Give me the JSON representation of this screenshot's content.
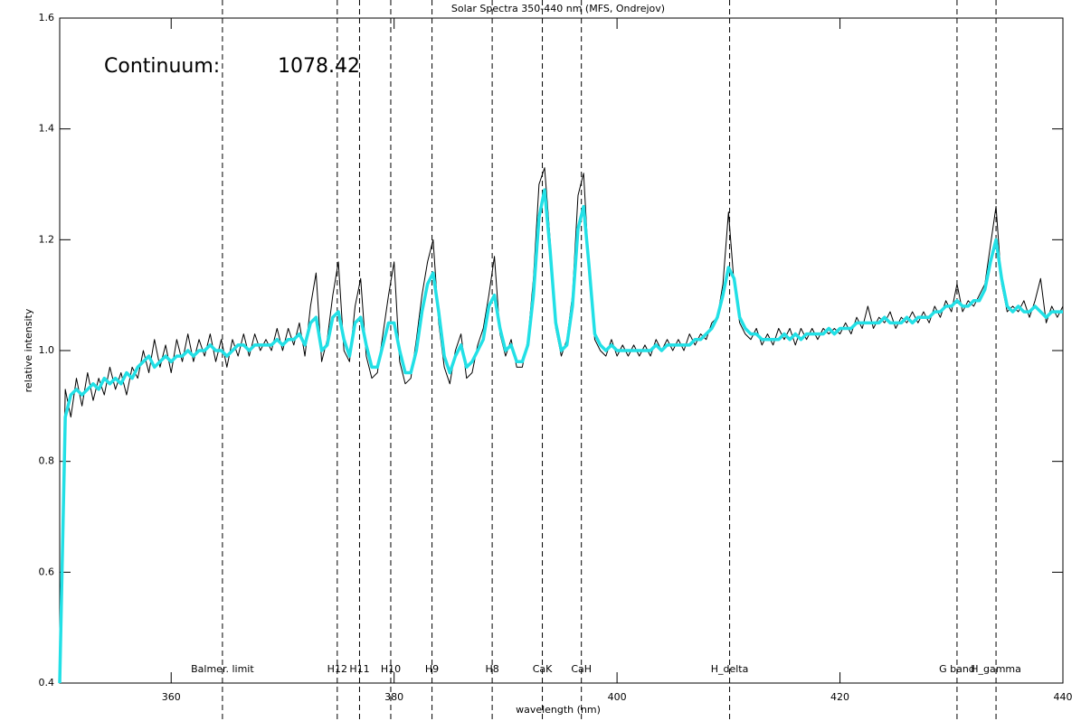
{
  "chart_data": {
    "type": "line",
    "title": "Solar Spectra 350-440 nm (MFS, Ondrejov)",
    "x_label": "wavelength (nm)",
    "y_label": "relative intensity",
    "continuum_label": "Continuum:",
    "continuum_value": "1078.42",
    "xlim": [
      350,
      440
    ],
    "ylim": [
      0.4,
      1.6
    ],
    "xticks": [
      360,
      380,
      400,
      420,
      440
    ],
    "yticks": [
      0.4,
      0.6,
      0.8,
      {
        "value": 1,
        "label": "1.0"
      },
      1.2,
      1.4,
      1.6
    ],
    "x": [
      350,
      350.5,
      351,
      351.5,
      352,
      352.5,
      353,
      353.5,
      354,
      354.5,
      355,
      355.5,
      356,
      356.5,
      357,
      357.5,
      358,
      358.5,
      359,
      359.5,
      360,
      360.5,
      361,
      361.5,
      362,
      362.5,
      363,
      363.5,
      364,
      364.5,
      365,
      365.5,
      366,
      366.5,
      367,
      367.5,
      368,
      368.5,
      369,
      369.5,
      370,
      370.5,
      371,
      371.5,
      372,
      372.5,
      373,
      373.5,
      374,
      374.5,
      375,
      375.5,
      376,
      376.5,
      377,
      377.5,
      378,
      378.5,
      379,
      379.5,
      380,
      380.5,
      381,
      381.5,
      382,
      382.5,
      383,
      383.5,
      384,
      384.5,
      385,
      385.5,
      386,
      386.5,
      387,
      387.5,
      388,
      388.5,
      389,
      389.5,
      390,
      390.5,
      391,
      391.5,
      392,
      392.5,
      393,
      393.5,
      394,
      394.5,
      395,
      395.5,
      396,
      396.5,
      397,
      397.5,
      398,
      398.5,
      399,
      399.5,
      400,
      400.5,
      401,
      401.5,
      402,
      402.5,
      403,
      403.5,
      404,
      404.5,
      405,
      405.5,
      406,
      406.5,
      407,
      407.5,
      408,
      408.5,
      409,
      409.5,
      410,
      410.5,
      411,
      411.5,
      412,
      412.5,
      413,
      413.5,
      414,
      414.5,
      415,
      415.5,
      416,
      416.5,
      417,
      417.5,
      418,
      418.5,
      419,
      419.5,
      420,
      420.5,
      421,
      421.5,
      422,
      422.5,
      423,
      423.5,
      424,
      424.5,
      425,
      425.5,
      426,
      426.5,
      427,
      427.5,
      428,
      428.5,
      429,
      429.5,
      430,
      430.5,
      431,
      431.5,
      432,
      432.5,
      433,
      433.5,
      434,
      434.5,
      435,
      435.5,
      436,
      436.5,
      437,
      437.5,
      438,
      438.5,
      439,
      439.5,
      440
    ],
    "series": [
      {
        "color": "#000000",
        "width": 1,
        "values": [
          0.4,
          0.93,
          0.88,
          0.95,
          0.9,
          0.96,
          0.91,
          0.95,
          0.92,
          0.97,
          0.93,
          0.96,
          0.92,
          0.97,
          0.95,
          1.0,
          0.96,
          1.02,
          0.97,
          1.01,
          0.96,
          1.02,
          0.98,
          1.03,
          0.98,
          1.02,
          0.99,
          1.03,
          0.98,
          1.02,
          0.97,
          1.02,
          0.99,
          1.03,
          0.99,
          1.03,
          1.0,
          1.02,
          1.0,
          1.04,
          1.0,
          1.04,
          1.01,
          1.05,
          0.99,
          1.08,
          1.14,
          0.98,
          1.02,
          1.1,
          1.16,
          1.0,
          0.98,
          1.08,
          1.13,
          0.99,
          0.95,
          0.96,
          1.03,
          1.1,
          1.16,
          0.98,
          0.94,
          0.95,
          1.02,
          1.1,
          1.16,
          1.2,
          1.05,
          0.97,
          0.94,
          1.0,
          1.03,
          0.95,
          0.96,
          1.01,
          1.04,
          1.1,
          1.17,
          1.03,
          0.99,
          1.02,
          0.97,
          0.97,
          1.02,
          1.13,
          1.3,
          1.33,
          1.2,
          1.04,
          0.99,
          1.02,
          1.1,
          1.28,
          1.32,
          1.14,
          1.02,
          1.0,
          0.99,
          1.02,
          0.99,
          1.01,
          0.99,
          1.01,
          0.99,
          1.01,
          0.99,
          1.02,
          1.0,
          1.02,
          1.0,
          1.02,
          1.0,
          1.03,
          1.01,
          1.03,
          1.02,
          1.05,
          1.06,
          1.12,
          1.25,
          1.12,
          1.05,
          1.03,
          1.02,
          1.04,
          1.01,
          1.03,
          1.01,
          1.04,
          1.02,
          1.04,
          1.01,
          1.04,
          1.02,
          1.04,
          1.02,
          1.04,
          1.03,
          1.04,
          1.03,
          1.05,
          1.03,
          1.06,
          1.04,
          1.08,
          1.04,
          1.06,
          1.05,
          1.07,
          1.04,
          1.06,
          1.05,
          1.07,
          1.05,
          1.07,
          1.05,
          1.08,
          1.06,
          1.09,
          1.07,
          1.12,
          1.07,
          1.09,
          1.08,
          1.1,
          1.12,
          1.19,
          1.26,
          1.12,
          1.07,
          1.08,
          1.07,
          1.09,
          1.06,
          1.09,
          1.13,
          1.05,
          1.08,
          1.06,
          1.08
        ]
      },
      {
        "color": "#22e0e6",
        "width": 3.5,
        "values": [
          0.4,
          0.88,
          0.92,
          0.93,
          0.92,
          0.93,
          0.94,
          0.93,
          0.95,
          0.94,
          0.95,
          0.94,
          0.96,
          0.95,
          0.97,
          0.98,
          0.99,
          0.97,
          0.98,
          0.99,
          0.98,
          0.99,
          0.99,
          1.0,
          0.99,
          1.0,
          1.0,
          1.01,
          1.0,
          1.0,
          0.99,
          1.0,
          1.01,
          1.01,
          1.0,
          1.01,
          1.01,
          1.01,
          1.01,
          1.02,
          1.01,
          1.02,
          1.02,
          1.03,
          1.01,
          1.05,
          1.06,
          1.0,
          1.01,
          1.06,
          1.07,
          1.02,
          0.99,
          1.05,
          1.06,
          1.01,
          0.97,
          0.97,
          1.01,
          1.05,
          1.05,
          1.0,
          0.96,
          0.96,
          1.0,
          1.07,
          1.12,
          1.14,
          1.07,
          0.99,
          0.96,
          0.99,
          1.01,
          0.97,
          0.98,
          1.0,
          1.02,
          1.08,
          1.1,
          1.04,
          1.0,
          1.01,
          0.98,
          0.98,
          1.01,
          1.1,
          1.24,
          1.29,
          1.18,
          1.05,
          1.0,
          1.01,
          1.08,
          1.22,
          1.26,
          1.15,
          1.03,
          1.01,
          1.0,
          1.01,
          1.0,
          1.0,
          1.0,
          1.0,
          1.0,
          1.0,
          1.0,
          1.01,
          1.0,
          1.01,
          1.01,
          1.01,
          1.01,
          1.01,
          1.02,
          1.02,
          1.03,
          1.04,
          1.06,
          1.1,
          1.15,
          1.13,
          1.06,
          1.04,
          1.03,
          1.03,
          1.02,
          1.02,
          1.02,
          1.02,
          1.03,
          1.02,
          1.03,
          1.02,
          1.03,
          1.03,
          1.03,
          1.03,
          1.04,
          1.03,
          1.04,
          1.04,
          1.04,
          1.05,
          1.05,
          1.05,
          1.05,
          1.05,
          1.06,
          1.05,
          1.05,
          1.05,
          1.06,
          1.05,
          1.06,
          1.06,
          1.06,
          1.07,
          1.07,
          1.08,
          1.08,
          1.09,
          1.08,
          1.08,
          1.09,
          1.09,
          1.11,
          1.16,
          1.2,
          1.13,
          1.08,
          1.07,
          1.08,
          1.07,
          1.07,
          1.08,
          1.07,
          1.06,
          1.07,
          1.07,
          1.07
        ]
      }
    ],
    "lines": [
      {
        "x": 364.6,
        "label": "Balmer. limit"
      },
      {
        "x": 374.9,
        "label": "H12"
      },
      {
        "x": 376.9,
        "label": "H11"
      },
      {
        "x": 379.7,
        "label": "H10"
      },
      {
        "x": 383.4,
        "label": "H9"
      },
      {
        "x": 388.8,
        "label": "H8"
      },
      {
        "x": 393.3,
        "label": "CaK"
      },
      {
        "x": 396.8,
        "label": "CaH"
      },
      {
        "x": 410.1,
        "label": "H_delta"
      },
      {
        "x": 430.5,
        "label": "G band"
      },
      {
        "x": 434.0,
        "label": "H_gamma"
      }
    ]
  }
}
